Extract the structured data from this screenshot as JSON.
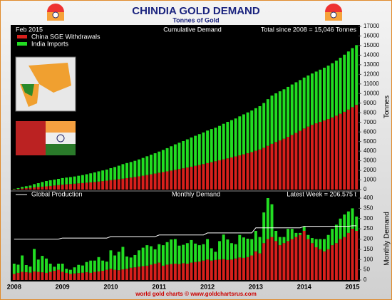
{
  "chart_data": [
    {
      "type": "bar",
      "title": "CHINDIA GOLD DEMAND",
      "subtitle": "Tonnes of Gold",
      "date_label": "Feb 2015",
      "panel_title": "Cumulative Demand",
      "annotation": "Total since 2008 = 15,046 Tonnes",
      "y_label": "Tonnes",
      "stacked": true,
      "legend": "top-left",
      "categories": [
        "2008",
        null,
        null,
        null,
        null,
        null,
        null,
        null,
        null,
        null,
        null,
        null,
        "2009",
        null,
        null,
        null,
        null,
        null,
        null,
        null,
        null,
        null,
        null,
        null,
        "2010",
        null,
        null,
        null,
        null,
        null,
        null,
        null,
        null,
        null,
        null,
        null,
        "2011",
        null,
        null,
        null,
        null,
        null,
        null,
        null,
        null,
        null,
        null,
        null,
        "2012",
        null,
        null,
        null,
        null,
        null,
        null,
        null,
        null,
        null,
        null,
        null,
        "2013",
        null,
        null,
        null,
        null,
        null,
        null,
        null,
        null,
        null,
        null,
        null,
        "2014",
        null,
        null,
        null,
        null,
        null,
        null,
        null,
        null,
        null,
        null,
        null,
        "2015",
        null
      ],
      "series": [
        {
          "name": "China SGE Withdrawals",
          "color": "#d8201c",
          "values": [
            30,
            65,
            105,
            143,
            179,
            221,
            261,
            299,
            334,
            374,
            419,
            469,
            509,
            544,
            574,
            606,
            640,
            676,
            714,
            749,
            789,
            831,
            876,
            926,
            981,
            1031,
            1079,
            1131,
            1186,
            1246,
            1308,
            1373,
            1441,
            1511,
            1586,
            1666,
            1751,
            1821,
            1896,
            1974,
            2054,
            2132,
            2214,
            2294,
            2379,
            2467,
            2557,
            2652,
            2752,
            2847,
            2945,
            3045,
            3147,
            3245,
            3345,
            3450,
            3560,
            3668,
            3780,
            3900,
            4040,
            4170,
            4350,
            4550,
            4760,
            4950,
            5120,
            5300,
            5490,
            5690,
            5900,
            6120,
            6360,
            6560,
            6740,
            6900,
            7050,
            7190,
            7340,
            7510,
            7690,
            7890,
            8100,
            8330,
            8580,
            8820
          ]
        },
        {
          "name": "India Imports",
          "color": "#22dd22",
          "values": [
            50,
            90,
            170,
            205,
            235,
            345,
            405,
            485,
            555,
            595,
            615,
            645,
            685,
            705,
            725,
            755,
            795,
            830,
            880,
            940,
            995,
            1065,
            1115,
            1155,
            1245,
            1315,
            1405,
            1515,
            1575,
            1625,
            1685,
            1765,
            1855,
            1955,
            2045,
            2115,
            2205,
            2305,
            2415,
            2535,
            2655,
            2745,
            2835,
            2935,
            3045,
            3135,
            3215,
            3295,
            3395,
            3455,
            3495,
            3585,
            3705,
            3805,
            3885,
            3955,
            4065,
            4165,
            4255,
            4335,
            4435,
            4515,
            4665,
            4865,
            5025,
            5075,
            5115,
            5145,
            5205,
            5255,
            5275,
            5285,
            5305,
            5325,
            5350,
            5390,
            5440,
            5500,
            5570,
            5650,
            5740,
            5840,
            5950,
            6055,
            6155,
            6225
          ]
        }
      ],
      "ylim": [
        0,
        17000
      ],
      "yticks": [
        0,
        1000,
        2000,
        3000,
        4000,
        5000,
        6000,
        7000,
        8000,
        9000,
        10000,
        11000,
        12000,
        13000,
        14000,
        15000,
        16000,
        17000
      ]
    },
    {
      "type": "bar",
      "panel_title": "Monthly Demand",
      "annotation": "Latest Week = 206.575 t",
      "y_label": "Monthly Demand",
      "footer": "world gold charts © www.goldchartsrus.com",
      "stacked": true,
      "series": [
        {
          "name": "China SGE Withdrawals",
          "color": "#d8201c",
          "values": [
            30,
            35,
            40,
            38,
            36,
            42,
            40,
            38,
            35,
            40,
            45,
            50,
            40,
            35,
            30,
            32,
            34,
            36,
            38,
            35,
            40,
            42,
            45,
            50,
            55,
            50,
            48,
            52,
            55,
            60,
            62,
            65,
            68,
            70,
            75,
            80,
            85,
            70,
            75,
            78,
            80,
            78,
            82,
            80,
            85,
            88,
            90,
            95,
            100,
            95,
            98,
            100,
            102,
            98,
            100,
            105,
            110,
            108,
            112,
            120,
            140,
            130,
            180,
            200,
            210,
            190,
            170,
            180,
            190,
            200,
            210,
            220,
            240,
            200,
            180,
            160,
            150,
            140,
            150,
            170,
            180,
            200,
            210,
            230,
            250,
            240
          ]
        },
        {
          "name": "India Imports",
          "color": "#22dd22",
          "values": [
            50,
            40,
            80,
            35,
            30,
            110,
            60,
            80,
            70,
            40,
            20,
            30,
            40,
            20,
            20,
            30,
            40,
            35,
            50,
            60,
            55,
            70,
            50,
            40,
            90,
            70,
            90,
            110,
            60,
            50,
            60,
            80,
            90,
            100,
            90,
            70,
            90,
            100,
            110,
            120,
            120,
            90,
            90,
            100,
            110,
            90,
            80,
            80,
            100,
            60,
            40,
            90,
            120,
            100,
            80,
            70,
            110,
            100,
            90,
            80,
            100,
            80,
            150,
            200,
            160,
            50,
            40,
            30,
            60,
            50,
            20,
            10,
            20,
            20,
            25,
            40,
            50,
            60,
            70,
            80,
            90,
            100,
            110,
            105,
            100,
            70
          ]
        },
        {
          "name": "Global Production",
          "type": "line",
          "color": "#ffffff",
          "values": [
            200,
            200,
            200,
            200,
            200,
            200,
            200,
            200,
            200,
            200,
            200,
            200,
            205,
            205,
            205,
            205,
            205,
            205,
            205,
            205,
            205,
            205,
            205,
            205,
            212,
            212,
            212,
            212,
            212,
            212,
            212,
            212,
            212,
            212,
            212,
            212,
            220,
            220,
            220,
            220,
            220,
            220,
            220,
            220,
            220,
            220,
            220,
            220,
            230,
            230,
            230,
            230,
            230,
            230,
            230,
            230,
            230,
            230,
            230,
            230,
            255,
            255,
            255,
            255,
            255,
            255,
            255,
            255,
            255,
            255,
            255,
            255,
            262,
            262,
            262,
            262,
            262,
            262,
            262,
            262,
            262,
            262,
            262,
            262,
            265,
            265
          ]
        }
      ],
      "ylim": [
        0,
        400
      ],
      "yticks": [
        0,
        50,
        100,
        150,
        200,
        250,
        300,
        350,
        400
      ]
    }
  ]
}
